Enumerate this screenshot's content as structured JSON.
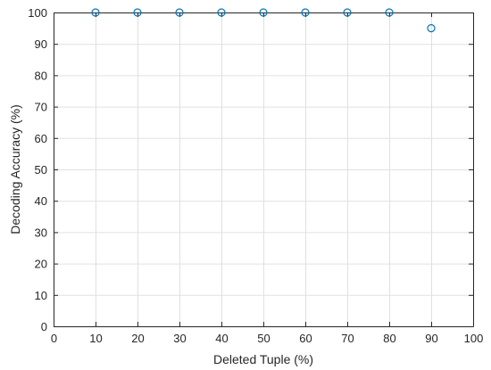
{
  "chart_data": {
    "type": "scatter",
    "title": "",
    "xlabel": "Deleted Tuple (%)",
    "ylabel": "Decoding Accuracy (%)",
    "xlim": [
      0,
      100
    ],
    "ylim": [
      0,
      100
    ],
    "xticks": [
      0,
      10,
      20,
      30,
      40,
      50,
      60,
      70,
      80,
      90,
      100
    ],
    "yticks": [
      0,
      10,
      20,
      30,
      40,
      50,
      60,
      70,
      80,
      90,
      100
    ],
    "grid": true,
    "marker": "circle-open",
    "marker_color": "#0072bd",
    "series": [
      {
        "x": [
          10,
          20,
          30,
          40,
          50,
          60,
          70,
          80,
          90
        ],
        "y": [
          100,
          100,
          100,
          100,
          100,
          100,
          100,
          100,
          95
        ]
      }
    ]
  }
}
